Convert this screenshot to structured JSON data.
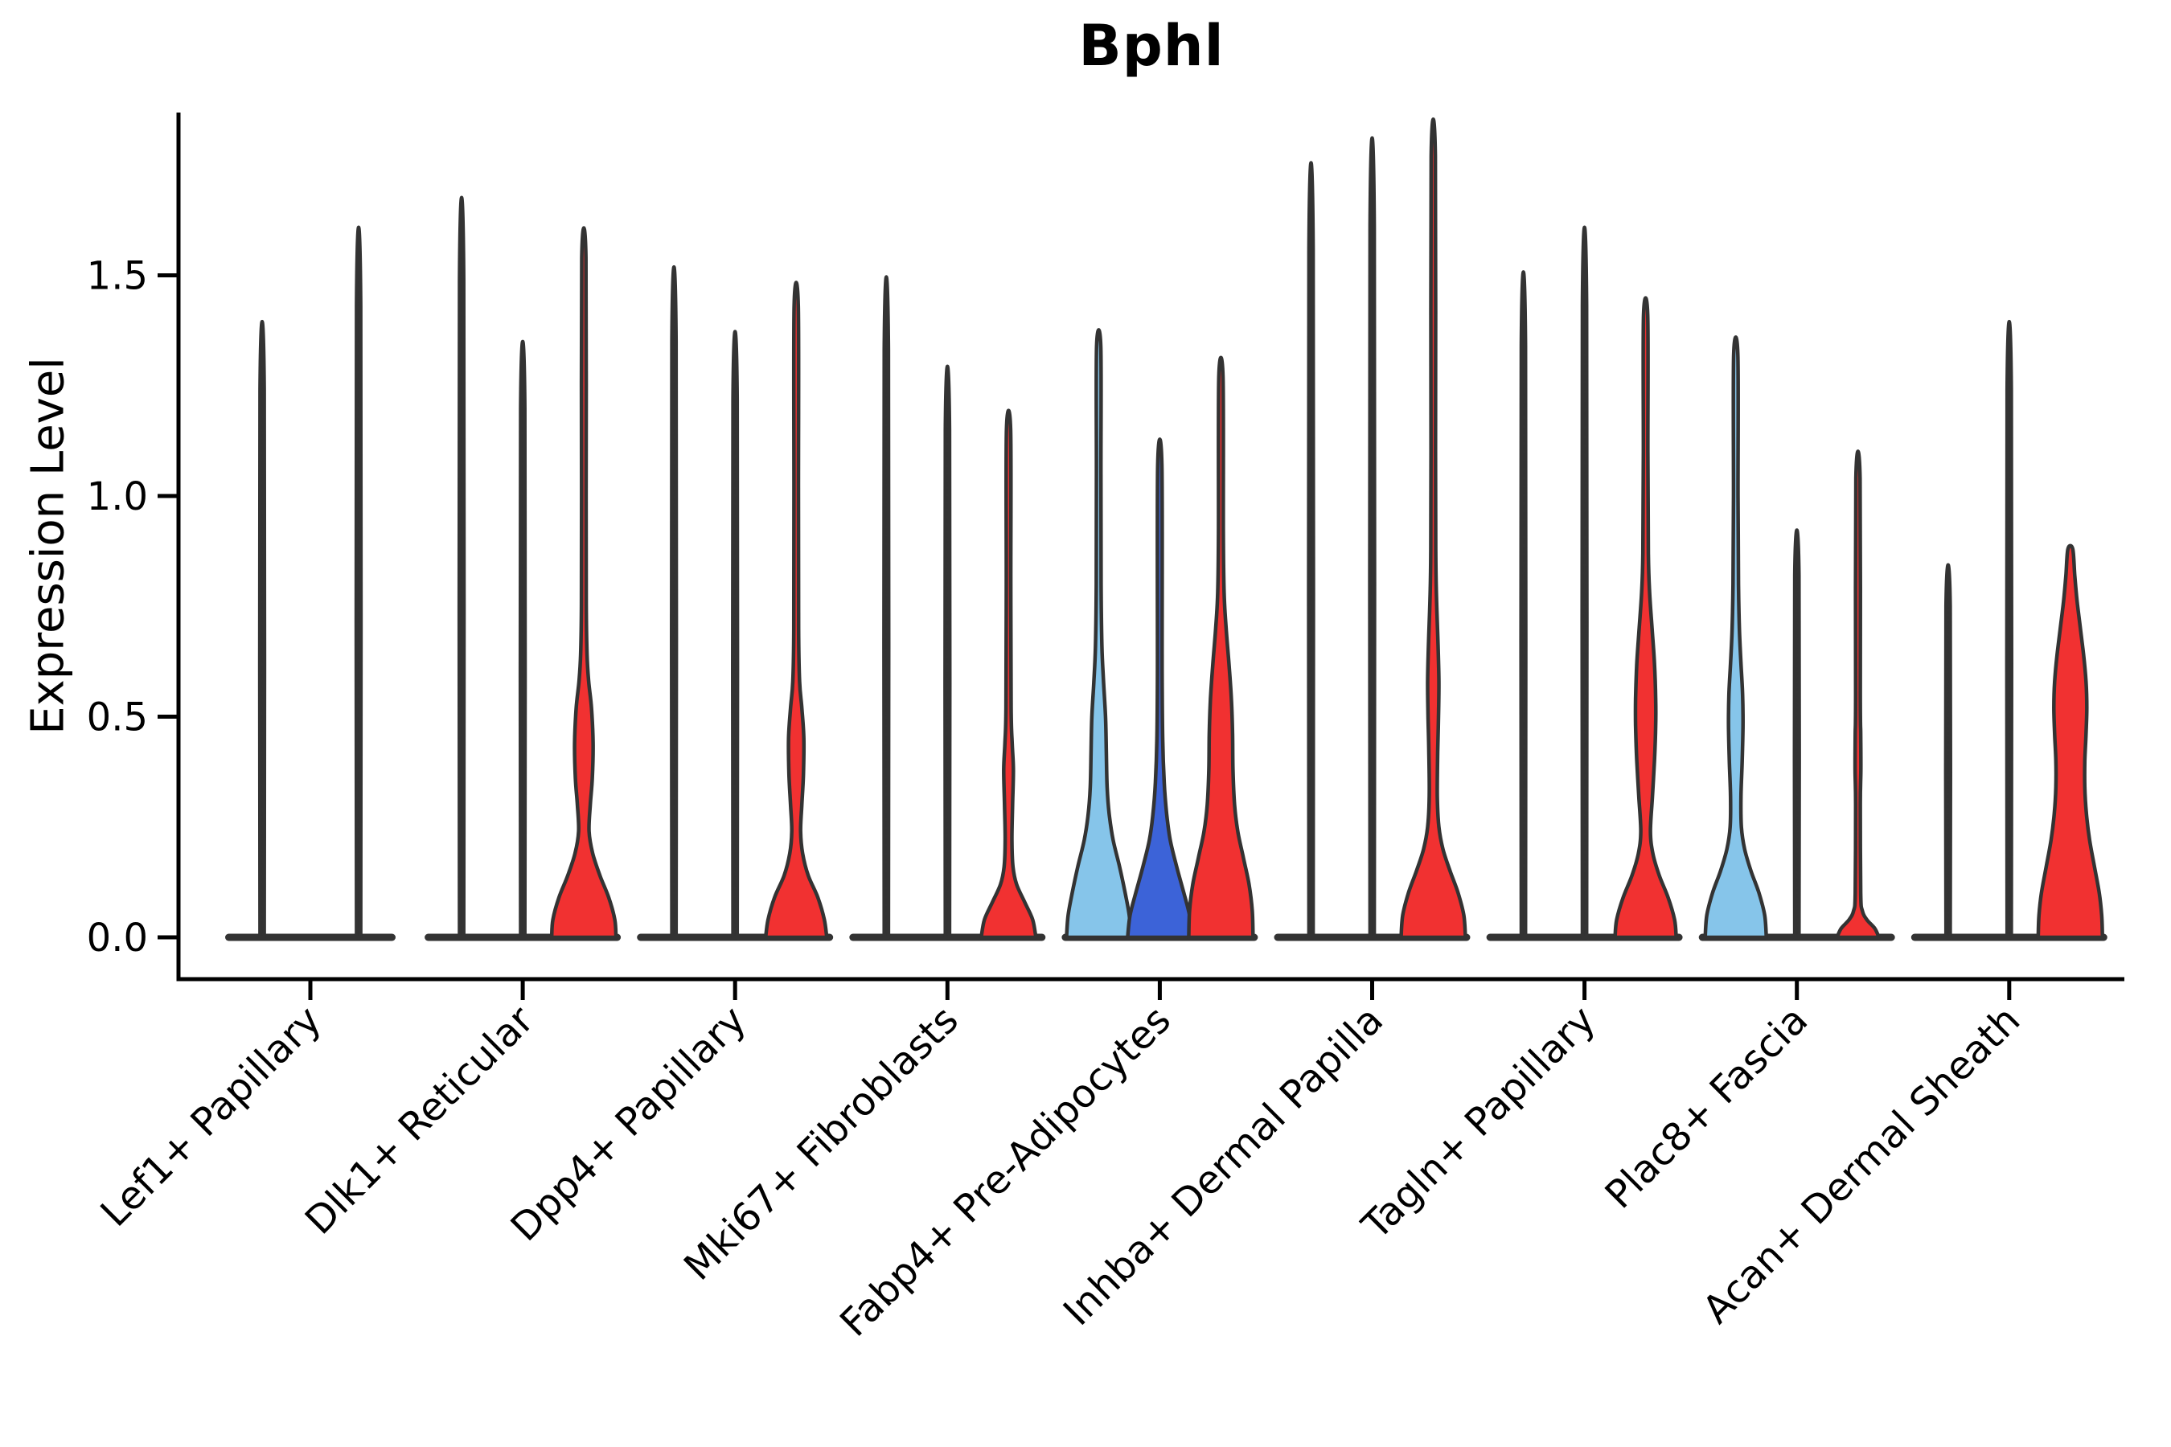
{
  "chart_data": {
    "type": "violin",
    "title": "Bphl",
    "ylabel": "Expression Level",
    "yticks": [
      "0.0",
      "0.5",
      "1.0",
      "1.5"
    ],
    "ytick_values": [
      0.0,
      0.5,
      1.0,
      1.5
    ],
    "ylim": [
      -0.095,
      1.87
    ],
    "grid": false,
    "legend": "none",
    "colors": {
      "red": "#f13131",
      "light_blue": "#86c5ea",
      "dark_blue": "#3c63d8",
      "outline": "#333333",
      "axis": "#000000"
    },
    "categories": [
      {
        "label": "Lef1+ Papillary",
        "violins": [
          {
            "color": null,
            "max": 1.24,
            "profile": [
              [
                0,
                2.6
              ],
              [
                1.24,
                2.6
              ]
            ]
          },
          {
            "color": null,
            "max": 1.43,
            "profile": [
              [
                0,
                2.6
              ],
              [
                1.43,
                2.6
              ]
            ]
          }
        ]
      },
      {
        "label": "Dlk1+ Reticular",
        "violins": [
          {
            "color": null,
            "max": 1.49,
            "profile": [
              [
                0,
                2.6
              ],
              [
                1.49,
                2.6
              ]
            ]
          },
          {
            "color": null,
            "max": 1.2,
            "profile": [
              [
                0,
                2.6
              ],
              [
                1.2,
                2.6
              ]
            ]
          },
          {
            "color": "red",
            "max": 1.54,
            "profile": [
              [
                0,
                40
              ],
              [
                0.04,
                38.5
              ],
              [
                0.09,
                31
              ],
              [
                0.14,
                20
              ],
              [
                0.19,
                11
              ],
              [
                0.24,
                6.5
              ],
              [
                0.3,
                8
              ],
              [
                0.36,
                10.5
              ],
              [
                0.44,
                11.5
              ],
              [
                0.52,
                9.5
              ],
              [
                0.58,
                6
              ],
              [
                0.64,
                4
              ],
              [
                0.75,
                3
              ],
              [
                1.0,
                2.8
              ],
              [
                1.54,
                2.6
              ]
            ]
          }
        ]
      },
      {
        "label": "Dpp4+ Papillary",
        "violins": [
          {
            "color": null,
            "max": 1.35,
            "profile": [
              [
                0,
                2.6
              ],
              [
                1.35,
                2.6
              ]
            ]
          },
          {
            "color": null,
            "max": 1.22,
            "profile": [
              [
                0,
                2.6
              ],
              [
                1.22,
                2.6
              ]
            ]
          },
          {
            "color": "red",
            "max": 1.43,
            "profile": [
              [
                0,
                38
              ],
              [
                0.04,
                35
              ],
              [
                0.09,
                27
              ],
              [
                0.14,
                15
              ],
              [
                0.19,
                8
              ],
              [
                0.24,
                5.5
              ],
              [
                0.3,
                7
              ],
              [
                0.37,
                9
              ],
              [
                0.45,
                9.5
              ],
              [
                0.52,
                7
              ],
              [
                0.58,
                4.2
              ],
              [
                0.7,
                3
              ],
              [
                1.0,
                2.8
              ],
              [
                1.43,
                2.6
              ]
            ]
          }
        ]
      },
      {
        "label": "Mki67+ Fibroblasts",
        "violins": [
          {
            "color": null,
            "max": 1.33,
            "profile": [
              [
                0,
                2.6
              ],
              [
                1.33,
                2.6
              ]
            ]
          },
          {
            "color": null,
            "max": 1.15,
            "profile": [
              [
                0,
                2.6
              ],
              [
                1.15,
                2.6
              ]
            ]
          },
          {
            "color": "red",
            "max": 1.15,
            "profile": [
              [
                0,
                34
              ],
              [
                0.04,
                30
              ],
              [
                0.08,
                20
              ],
              [
                0.12,
                10
              ],
              [
                0.16,
                5.5
              ],
              [
                0.22,
                4.2
              ],
              [
                0.3,
                5
              ],
              [
                0.38,
                6
              ],
              [
                0.44,
                4.5
              ],
              [
                0.52,
                3.2
              ],
              [
                0.8,
                2.8
              ],
              [
                1.15,
                2.6
              ]
            ]
          }
        ]
      },
      {
        "label": "Fabp4+ Pre-Adipocytes",
        "violins": [
          {
            "color": "light_blue",
            "max": 1.34,
            "profile": [
              [
                0,
                40
              ],
              [
                0.05,
                38
              ],
              [
                0.1,
                33
              ],
              [
                0.16,
                26
              ],
              [
                0.22,
                18
              ],
              [
                0.28,
                13
              ],
              [
                0.34,
                10.5
              ],
              [
                0.42,
                9.5
              ],
              [
                0.5,
                8.5
              ],
              [
                0.58,
                6
              ],
              [
                0.66,
                4
              ],
              [
                0.8,
                3
              ],
              [
                1.05,
                2.8
              ],
              [
                1.34,
                2.6
              ]
            ]
          },
          {
            "color": "dark_blue",
            "max": 1.07,
            "profile": [
              [
                0,
                40
              ],
              [
                0.05,
                37
              ],
              [
                0.1,
                30
              ],
              [
                0.16,
                21
              ],
              [
                0.22,
                13
              ],
              [
                0.28,
                8.5
              ],
              [
                0.35,
                5.5
              ],
              [
                0.45,
                3.6
              ],
              [
                0.6,
                2.9
              ],
              [
                1.07,
                2.6
              ]
            ]
          },
          {
            "color": "red",
            "max": 1.27,
            "profile": [
              [
                0,
                40
              ],
              [
                0.06,
                39
              ],
              [
                0.12,
                35
              ],
              [
                0.18,
                28
              ],
              [
                0.24,
                21
              ],
              [
                0.3,
                17
              ],
              [
                0.38,
                15
              ],
              [
                0.46,
                14.5
              ],
              [
                0.54,
                13
              ],
              [
                0.62,
                10
              ],
              [
                0.7,
                6.5
              ],
              [
                0.78,
                4
              ],
              [
                0.92,
                3
              ],
              [
                1.27,
                2.6
              ]
            ]
          }
        ]
      },
      {
        "label": "Inhba+ Dermal Papilla",
        "violins": [
          {
            "color": null,
            "max": 1.56,
            "profile": [
              [
                0,
                2.6
              ],
              [
                1.56,
                2.6
              ]
            ]
          },
          {
            "color": null,
            "max": 1.61,
            "profile": [
              [
                0,
                2.6
              ],
              [
                1.61,
                2.6
              ]
            ]
          },
          {
            "color": "red",
            "max": 1.77,
            "profile": [
              [
                0,
                40
              ],
              [
                0.05,
                38
              ],
              [
                0.1,
                31
              ],
              [
                0.15,
                21
              ],
              [
                0.2,
                12
              ],
              [
                0.25,
                7
              ],
              [
                0.32,
                5
              ],
              [
                0.42,
                5.5
              ],
              [
                0.5,
                6.5
              ],
              [
                0.58,
                7
              ],
              [
                0.66,
                6
              ],
              [
                0.74,
                4.5
              ],
              [
                0.85,
                3.2
              ],
              [
                1.1,
                2.8
              ],
              [
                1.77,
                2.6
              ]
            ]
          }
        ]
      },
      {
        "label": "Tagln+ Papillary",
        "violins": [
          {
            "color": null,
            "max": 1.34,
            "profile": [
              [
                0,
                2.6
              ],
              [
                1.34,
                2.6
              ]
            ]
          },
          {
            "color": null,
            "max": 1.43,
            "profile": [
              [
                0,
                2.6
              ],
              [
                1.43,
                2.6
              ]
            ]
          },
          {
            "color": "red",
            "max": 1.41,
            "profile": [
              [
                0,
                38
              ],
              [
                0.04,
                36
              ],
              [
                0.09,
                28
              ],
              [
                0.14,
                17
              ],
              [
                0.19,
                9
              ],
              [
                0.24,
                6
              ],
              [
                0.32,
                8.5
              ],
              [
                0.4,
                11
              ],
              [
                0.48,
                12.5
              ],
              [
                0.54,
                12.5
              ],
              [
                0.62,
                11
              ],
              [
                0.7,
                8
              ],
              [
                0.78,
                5
              ],
              [
                0.87,
                3.4
              ],
              [
                1.1,
                2.8
              ],
              [
                1.41,
                2.6
              ]
            ]
          }
        ]
      },
      {
        "label": "Plac8+ Fascia",
        "violins": [
          {
            "color": "light_blue",
            "max": 1.32,
            "profile": [
              [
                0,
                38
              ],
              [
                0.05,
                36
              ],
              [
                0.1,
                29
              ],
              [
                0.15,
                19
              ],
              [
                0.2,
                11
              ],
              [
                0.25,
                7
              ],
              [
                0.32,
                6.5
              ],
              [
                0.4,
                8
              ],
              [
                0.48,
                9
              ],
              [
                0.55,
                8.5
              ],
              [
                0.62,
                6.5
              ],
              [
                0.7,
                4.5
              ],
              [
                0.8,
                3.4
              ],
              [
                1.0,
                2.8
              ],
              [
                1.32,
                2.6
              ]
            ]
          },
          {
            "color": null,
            "max": 0.82,
            "profile": [
              [
                0,
                2.6
              ],
              [
                0.82,
                2.6
              ]
            ]
          },
          {
            "color": "red",
            "max": 1.04,
            "profile": [
              [
                0,
                26
              ],
              [
                0.02,
                21
              ],
              [
                0.04,
                11
              ],
              [
                0.06,
                5.5
              ],
              [
                0.1,
                3.4
              ],
              [
                0.3,
                2.9
              ],
              [
                0.38,
                3.6
              ],
              [
                0.46,
                3.4
              ],
              [
                0.55,
                2.9
              ],
              [
                1.04,
                2.6
              ]
            ]
          }
        ]
      },
      {
        "label": "Acan+ Dermal Sheath",
        "violins": [
          {
            "color": null,
            "max": 0.75,
            "profile": [
              [
                0,
                2.6
              ],
              [
                0.75,
                2.6
              ]
            ]
          },
          {
            "color": null,
            "max": 1.24,
            "profile": [
              [
                0,
                2.6
              ],
              [
                1.24,
                2.6
              ]
            ]
          },
          {
            "color": "red",
            "max": 0.88,
            "profile": [
              [
                0,
                40
              ],
              [
                0.05,
                39
              ],
              [
                0.1,
                36
              ],
              [
                0.16,
                30
              ],
              [
                0.22,
                24
              ],
              [
                0.28,
                20
              ],
              [
                0.34,
                18
              ],
              [
                0.4,
                18
              ],
              [
                0.46,
                19.5
              ],
              [
                0.52,
                20.5
              ],
              [
                0.58,
                19.5
              ],
              [
                0.64,
                16.5
              ],
              [
                0.7,
                12.5
              ],
              [
                0.76,
                8.5
              ],
              [
                0.82,
                5.5
              ],
              [
                0.88,
                3
              ]
            ]
          }
        ]
      }
    ]
  }
}
